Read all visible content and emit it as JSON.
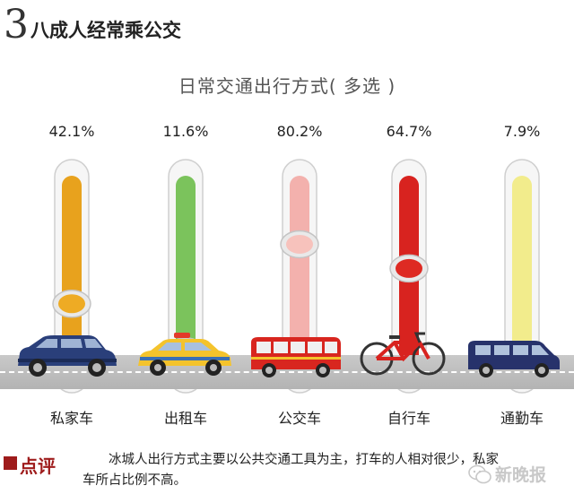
{
  "header": {
    "number": "3",
    "title": "八成人经常乘公交"
  },
  "chart_data": {
    "type": "bar",
    "title": "日常交通出行方式( 多选 )",
    "categories": [
      "私家车",
      "出租车",
      "公交车",
      "自行车",
      "通勤车"
    ],
    "values": [
      42.1,
      11.6,
      80.2,
      64.7,
      7.9
    ],
    "value_labels": [
      "42.1%",
      "11.6%",
      "80.2%",
      "64.7%",
      "7.9%"
    ],
    "ylim": [
      0,
      100
    ],
    "colors": [
      "#e8a21d",
      "#7bc35c",
      "#f3b1ad",
      "#d8231f",
      "#f2ec8c"
    ],
    "knob_colors": [
      "#eeab24",
      "#8ccb64",
      "#f7c2bc",
      "#de2a23",
      "#f6ef8e"
    ]
  },
  "vehicles": [
    "suv-icon",
    "taxi-icon",
    "bus-icon",
    "bicycle-icon",
    "van-icon"
  ],
  "comment": {
    "label": "点评",
    "text": "冰城人出行方式主要以公共交通工具为主，打车的人相对很少，私家车所占比例不高。"
  },
  "watermark": {
    "text": "新晚报",
    "icon": "wechat-icon"
  }
}
